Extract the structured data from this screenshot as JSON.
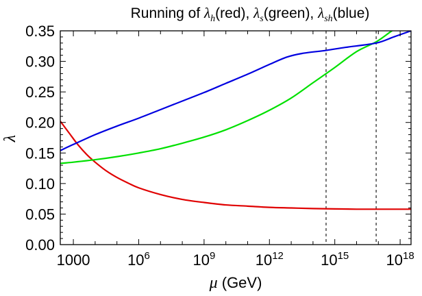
{
  "chart_data": {
    "type": "line",
    "title": "Running of λh(red), λs(green), λsh(blue)",
    "title_parts": {
      "prefix": "Running of ",
      "sym1": "λ",
      "sub1": "h",
      "mid1": "(red), ",
      "sym2": "λ",
      "sub2": "s",
      "mid2": "(green), ",
      "sym3": "λ",
      "sub3": "sh",
      "suffix": "(blue)"
    },
    "xlabel": "μ (GeV)",
    "xlabel_parts": {
      "symbol": "μ",
      "unit": " (GeV)"
    },
    "ylabel": "λ",
    "x_scale": "log10",
    "xlim_log10": [
      2.4,
      18.5
    ],
    "ylim": [
      0.0,
      0.35
    ],
    "x_ticks": [
      {
        "log10": 3,
        "label": "1000",
        "base": "",
        "exp": ""
      },
      {
        "log10": 6,
        "label": "",
        "base": "10",
        "exp": "6"
      },
      {
        "log10": 9,
        "label": "",
        "base": "10",
        "exp": "9"
      },
      {
        "log10": 12,
        "label": "",
        "base": "10",
        "exp": "12"
      },
      {
        "log10": 15,
        "label": "",
        "base": "10",
        "exp": "15"
      },
      {
        "log10": 18,
        "label": "",
        "base": "10",
        "exp": "18"
      }
    ],
    "y_ticks": [
      {
        "value": 0.0,
        "label": "0.00"
      },
      {
        "value": 0.05,
        "label": "0.05"
      },
      {
        "value": 0.1,
        "label": "0.10"
      },
      {
        "value": 0.15,
        "label": "0.15"
      },
      {
        "value": 0.2,
        "label": "0.20"
      },
      {
        "value": 0.25,
        "label": "0.25"
      },
      {
        "value": 0.3,
        "label": "0.30"
      },
      {
        "value": 0.35,
        "label": "0.35"
      }
    ],
    "vertical_lines_log10": [
      14.6,
      16.9
    ],
    "series": [
      {
        "name": "λh",
        "color": "#e00000",
        "points": [
          [
            2.4,
            0.202
          ],
          [
            2.8,
            0.183
          ],
          [
            3.2,
            0.164
          ],
          [
            3.6,
            0.148
          ],
          [
            4.0,
            0.135
          ],
          [
            4.5,
            0.121
          ],
          [
            5.0,
            0.11
          ],
          [
            5.5,
            0.101
          ],
          [
            6.0,
            0.093
          ],
          [
            7.0,
            0.082
          ],
          [
            8.0,
            0.074
          ],
          [
            9.0,
            0.069
          ],
          [
            10.0,
            0.065
          ],
          [
            11.0,
            0.063
          ],
          [
            12.0,
            0.061
          ],
          [
            13.0,
            0.06
          ],
          [
            14.0,
            0.059
          ],
          [
            15.0,
            0.0585
          ],
          [
            16.0,
            0.058
          ],
          [
            17.0,
            0.058
          ],
          [
            18.0,
            0.058
          ],
          [
            18.5,
            0.058
          ]
        ]
      },
      {
        "name": "λs",
        "color": "#00e000",
        "points": [
          [
            2.4,
            0.133
          ],
          [
            3.0,
            0.135
          ],
          [
            4.0,
            0.139
          ],
          [
            5.0,
            0.144
          ],
          [
            6.0,
            0.15
          ],
          [
            7.0,
            0.157
          ],
          [
            8.0,
            0.166
          ],
          [
            9.0,
            0.176
          ],
          [
            10.0,
            0.188
          ],
          [
            11.0,
            0.203
          ],
          [
            12.0,
            0.22
          ],
          [
            13.0,
            0.24
          ],
          [
            14.0,
            0.265
          ],
          [
            15.0,
            0.29
          ],
          [
            16.0,
            0.316
          ],
          [
            16.9,
            0.332
          ],
          [
            17.5,
            0.347
          ],
          [
            17.7,
            0.352
          ]
        ]
      },
      {
        "name": "λsh",
        "color": "#0000e0",
        "points": [
          [
            2.4,
            0.154
          ],
          [
            3.0,
            0.164
          ],
          [
            4.0,
            0.18
          ],
          [
            5.0,
            0.194
          ],
          [
            6.0,
            0.207
          ],
          [
            7.0,
            0.221
          ],
          [
            8.0,
            0.235
          ],
          [
            9.0,
            0.249
          ],
          [
            10.0,
            0.264
          ],
          [
            11.0,
            0.279
          ],
          [
            12.0,
            0.295
          ],
          [
            12.8,
            0.307
          ],
          [
            13.5,
            0.313
          ],
          [
            14.6,
            0.318
          ],
          [
            15.5,
            0.323
          ],
          [
            16.9,
            0.33
          ],
          [
            17.7,
            0.34
          ],
          [
            18.5,
            0.35
          ]
        ]
      }
    ]
  }
}
